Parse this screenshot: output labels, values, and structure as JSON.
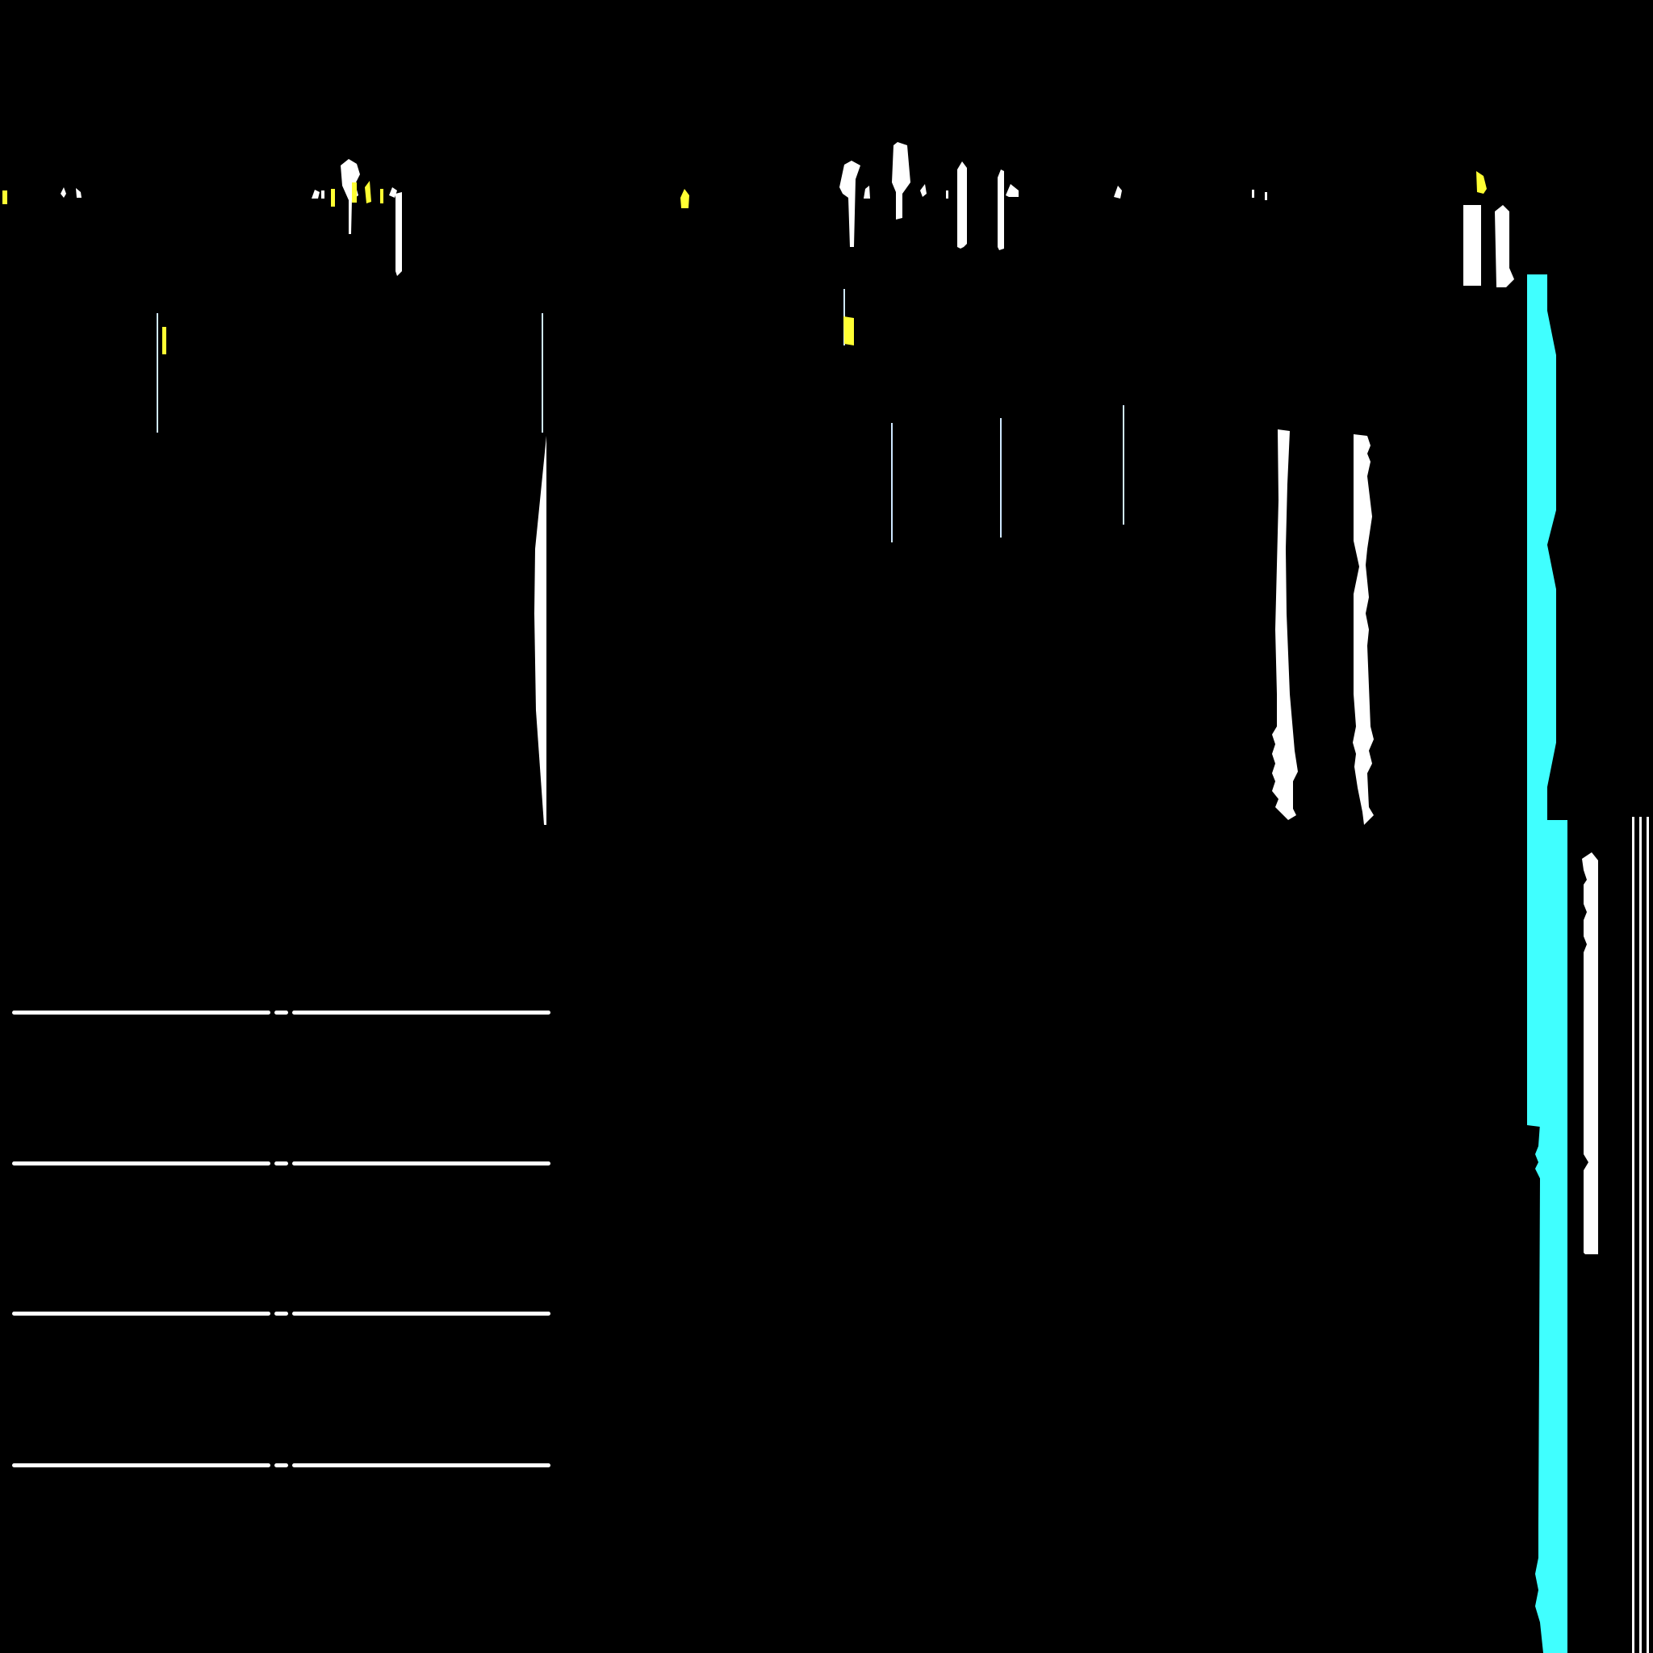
{
  "canvas": {
    "background": "#000000"
  },
  "palette": {
    "cyan": "#40ffff",
    "white": "#ffffff",
    "yellow": "#ffff33",
    "pale_blue": "#cfe8ff"
  }
}
